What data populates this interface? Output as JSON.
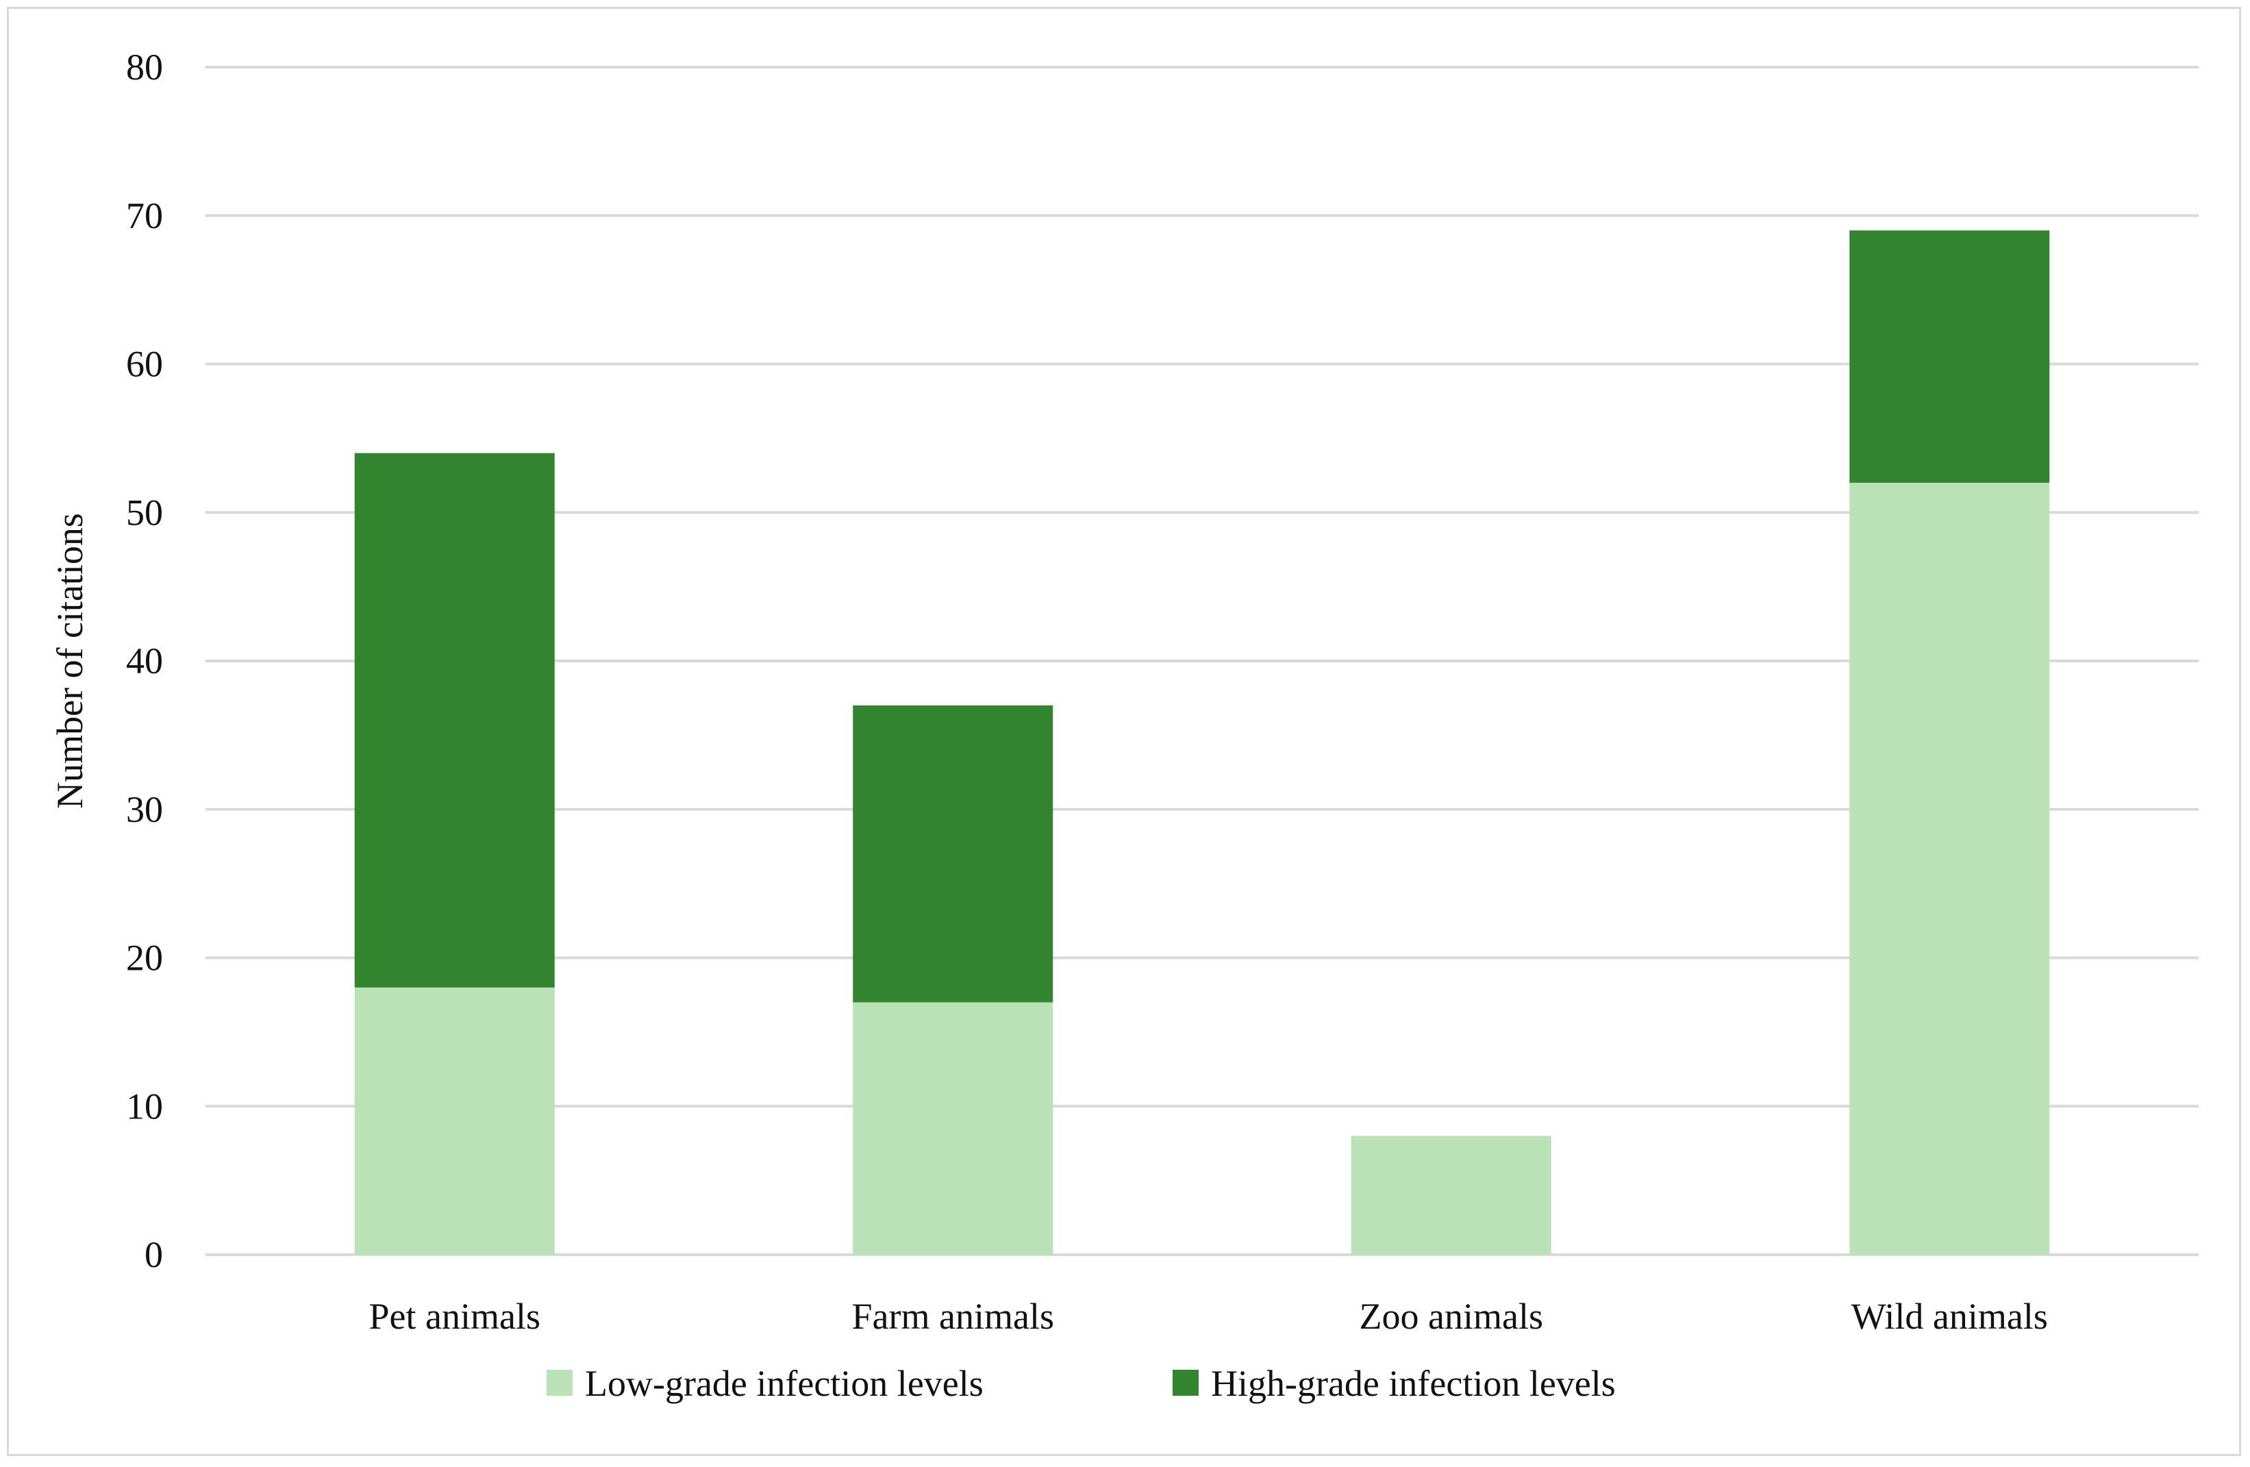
{
  "chart_data": {
    "type": "bar",
    "stacked": true,
    "title": "",
    "xlabel": "",
    "ylabel": "Number of citations",
    "ylim": [
      0,
      80
    ],
    "yticks": [
      0,
      10,
      20,
      30,
      40,
      50,
      60,
      70,
      80
    ],
    "grid": true,
    "legend_position": "bottom",
    "categories": [
      "Pet animals",
      "Farm animals",
      "Zoo animals",
      "Wild animals"
    ],
    "series": [
      {
        "name": "Low-grade infection levels",
        "color": "#bbe2b7",
        "values": [
          18,
          17,
          8,
          52
        ]
      },
      {
        "name": "High-grade infection levels",
        "color": "#33842e",
        "values": [
          36,
          20,
          0,
          17
        ]
      }
    ]
  }
}
